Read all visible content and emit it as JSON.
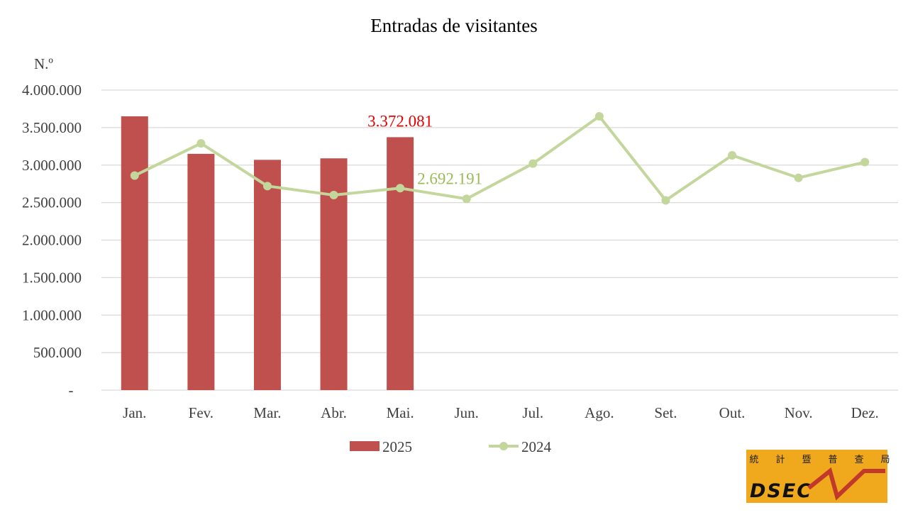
{
  "chart_data": {
    "type": "bar",
    "title": "Entradas de visitantes",
    "ylabel": "N.º",
    "xlabel": "",
    "ylim": [
      0,
      4000000
    ],
    "yticks": [
      {
        "value": 0,
        "label": "-"
      },
      {
        "value": 500000,
        "label": "500.000"
      },
      {
        "value": 1000000,
        "label": "1.000.000"
      },
      {
        "value": 1500000,
        "label": "1.500.000"
      },
      {
        "value": 2000000,
        "label": "2.000.000"
      },
      {
        "value": 2500000,
        "label": "2.500.000"
      },
      {
        "value": 3000000,
        "label": "3.000.000"
      },
      {
        "value": 3500000,
        "label": "3.500.000"
      },
      {
        "value": 4000000,
        "label": "4.000.000"
      }
    ],
    "categories": [
      "Jan.",
      "Fev.",
      "Mar.",
      "Abr.",
      "Mai.",
      "Jun.",
      "Jul.",
      "Ago.",
      "Set.",
      "Out.",
      "Nov.",
      "Dez."
    ],
    "series": [
      {
        "name": "2025",
        "type": "bar",
        "color": "#c0504d",
        "values": [
          3650000,
          3150000,
          3070000,
          3090000,
          3372081,
          null,
          null,
          null,
          null,
          null,
          null,
          null
        ],
        "data_label": {
          "index": 4,
          "text": "3.372.081",
          "color": "#e60000"
        }
      },
      {
        "name": "2024",
        "type": "line",
        "color": "#c3d69b",
        "values": [
          2860000,
          3290000,
          2720000,
          2600000,
          2692191,
          2550000,
          3020000,
          3650000,
          2530000,
          3130000,
          2830000,
          3040000
        ],
        "data_label": {
          "index": 4,
          "text": "2.692.191",
          "color": "#9bbb59"
        }
      }
    ],
    "grid": true,
    "legend_position": "bottom"
  },
  "logo": {
    "cjk_chars": [
      "統",
      "計",
      "暨",
      "普",
      "查",
      "局"
    ],
    "text": "DSEC",
    "bg_color": "#f0a91c"
  }
}
